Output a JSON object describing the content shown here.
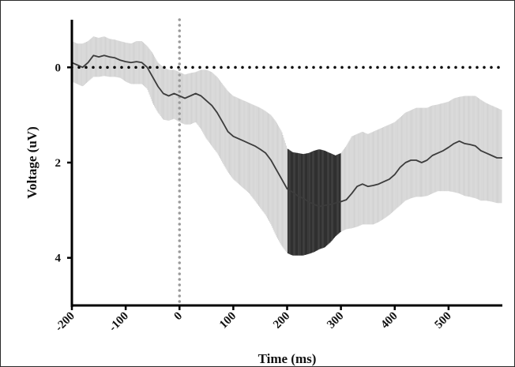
{
  "chart_data": {
    "type": "line",
    "title": "",
    "xlabel": "Time (ms)",
    "ylabel": "Voltage (uV)",
    "xlim": [
      -200,
      600
    ],
    "ylim": [
      -1,
      5
    ],
    "y_inverted": true,
    "x_ticks": [
      -200,
      -100,
      0,
      100,
      200,
      300,
      400,
      500
    ],
    "x_tick_labels": [
      "-200",
      "-100",
      "0",
      "100",
      "200",
      "300",
      "400",
      "500"
    ],
    "y_ticks": [
      0,
      2,
      4
    ],
    "y_tick_labels": [
      "0",
      "2",
      "4"
    ],
    "grid": false,
    "legend": "none",
    "reference_lines": [
      {
        "axis": "y",
        "value": 0,
        "style": "dotted",
        "color": "#000000"
      },
      {
        "axis": "x",
        "value": 0,
        "style": "dotted",
        "color": "#9a9a9a"
      }
    ],
    "highlight_window": [
      200,
      300
    ],
    "series": [
      {
        "x": [
          -200,
          -190,
          -180,
          -170,
          -160,
          -150,
          -140,
          -130,
          -120,
          -110,
          -100,
          -90,
          -80,
          -70,
          -60,
          -50,
          -40,
          -30,
          -20,
          -10,
          0,
          10,
          20,
          30,
          40,
          50,
          60,
          70,
          80,
          90,
          100,
          110,
          120,
          130,
          140,
          150,
          160,
          170,
          180,
          190,
          200,
          210,
          220,
          230,
          240,
          250,
          260,
          270,
          280,
          290,
          300,
          310,
          320,
          330,
          340,
          350,
          360,
          370,
          380,
          390,
          400,
          410,
          420,
          430,
          440,
          450,
          460,
          470,
          480,
          490,
          500,
          510,
          520,
          530,
          540,
          550,
          560,
          570,
          580,
          590,
          600
        ],
        "mean": [
          -0.1,
          -0.05,
          0.0,
          -0.1,
          -0.25,
          -0.22,
          -0.25,
          -0.22,
          -0.2,
          -0.15,
          -0.12,
          -0.1,
          -0.12,
          -0.1,
          0.0,
          0.2,
          0.4,
          0.55,
          0.6,
          0.55,
          0.6,
          0.65,
          0.6,
          0.55,
          0.6,
          0.7,
          0.8,
          0.95,
          1.15,
          1.35,
          1.45,
          1.5,
          1.55,
          1.6,
          1.65,
          1.72,
          1.8,
          1.95,
          2.15,
          2.35,
          2.55,
          2.62,
          2.7,
          2.75,
          2.82,
          2.88,
          2.92,
          2.9,
          2.88,
          2.85,
          2.82,
          2.78,
          2.65,
          2.5,
          2.45,
          2.5,
          2.48,
          2.45,
          2.4,
          2.35,
          2.25,
          2.1,
          2.0,
          1.95,
          1.95,
          2.0,
          1.95,
          1.85,
          1.8,
          1.75,
          1.68,
          1.6,
          1.55,
          1.6,
          1.62,
          1.65,
          1.75,
          1.8,
          1.85,
          1.9,
          1.9
        ],
        "upper": [
          0.3,
          0.35,
          0.4,
          0.3,
          0.2,
          0.2,
          0.18,
          0.2,
          0.2,
          0.22,
          0.3,
          0.35,
          0.35,
          0.35,
          0.45,
          0.75,
          0.95,
          1.1,
          1.12,
          1.08,
          1.15,
          1.2,
          1.2,
          1.15,
          1.3,
          1.5,
          1.65,
          1.8,
          2.0,
          2.2,
          2.35,
          2.45,
          2.55,
          2.65,
          2.8,
          2.95,
          3.1,
          3.3,
          3.55,
          3.75,
          3.9,
          3.95,
          3.95,
          3.95,
          3.92,
          3.88,
          3.82,
          3.78,
          3.68,
          3.55,
          3.45,
          3.4,
          3.38,
          3.35,
          3.3,
          3.3,
          3.3,
          3.25,
          3.18,
          3.1,
          3.0,
          2.9,
          2.8,
          2.75,
          2.72,
          2.72,
          2.7,
          2.65,
          2.6,
          2.6,
          2.6,
          2.62,
          2.65,
          2.7,
          2.72,
          2.75,
          2.8,
          2.8,
          2.82,
          2.85,
          2.85
        ],
        "lower": [
          -0.55,
          -0.5,
          -0.5,
          -0.55,
          -0.65,
          -0.62,
          -0.65,
          -0.6,
          -0.58,
          -0.55,
          -0.52,
          -0.5,
          -0.55,
          -0.55,
          -0.45,
          -0.3,
          -0.1,
          0.0,
          0.05,
          0.05,
          0.1,
          0.15,
          0.12,
          0.1,
          0.05,
          0.05,
          0.1,
          0.2,
          0.35,
          0.5,
          0.6,
          0.65,
          0.7,
          0.75,
          0.8,
          0.85,
          0.92,
          1.0,
          1.15,
          1.35,
          1.7,
          1.78,
          1.8,
          1.82,
          1.8,
          1.75,
          1.72,
          1.75,
          1.8,
          1.85,
          1.8,
          1.65,
          1.45,
          1.4,
          1.35,
          1.4,
          1.35,
          1.3,
          1.25,
          1.2,
          1.15,
          1.05,
          0.95,
          0.9,
          0.85,
          0.85,
          0.85,
          0.8,
          0.78,
          0.75,
          0.72,
          0.65,
          0.62,
          0.6,
          0.6,
          0.6,
          0.68,
          0.75,
          0.8,
          0.85,
          0.9
        ]
      }
    ]
  },
  "colors": {
    "band": "#d2d2d2",
    "band_highlight": "#303030",
    "mean_line": "#3c3c3c",
    "zero_line": "#000000",
    "onset_line": "#9a9a9a",
    "axis": "#000000"
  }
}
